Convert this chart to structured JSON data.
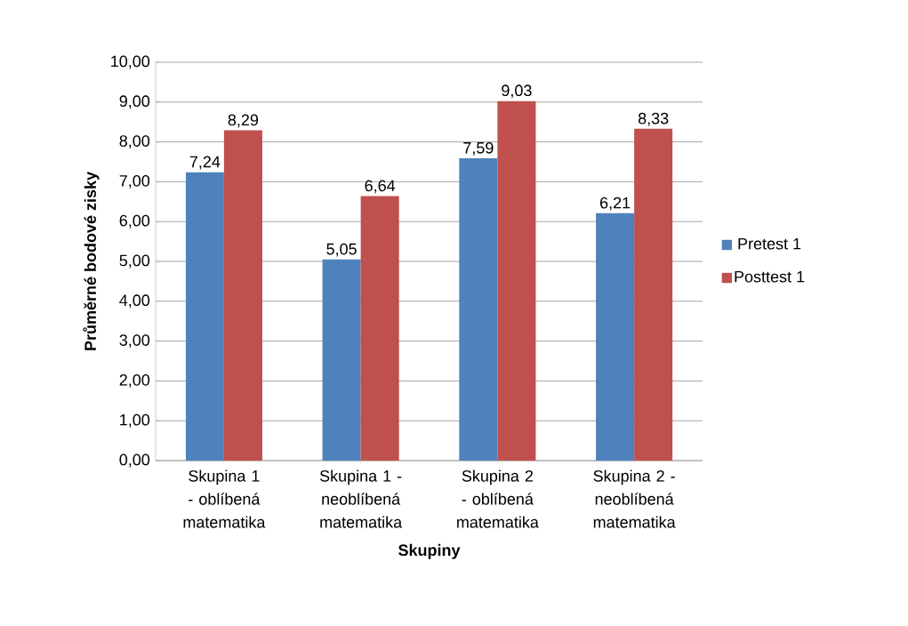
{
  "chart_data": {
    "type": "bar",
    "xlabel": "Skupiny",
    "ylabel": "Průměrné bodové zisky",
    "categories": [
      "Skupina 1 - oblíbená matematika",
      "Skupina 1 - neoblíbená matematika",
      "Skupina 2 - oblíbená matematika",
      "Skupina 2 - neoblíbená matematika"
    ],
    "series": [
      {
        "name": "Pretest 1",
        "color": "#4f81bd",
        "values": [
          7.24,
          5.05,
          7.59,
          6.21
        ],
        "value_labels": [
          "7,24",
          "5,05",
          "7,59",
          "6,21"
        ]
      },
      {
        "name": "Posttest 1",
        "color": "#c0504d",
        "values": [
          8.29,
          6.64,
          9.03,
          8.33
        ],
        "value_labels": [
          "8,29",
          "6,64",
          "9,03",
          "8,33"
        ]
      }
    ],
    "ylim": [
      0,
      10
    ],
    "yticks": [
      {
        "value": 0,
        "label": "0,00"
      },
      {
        "value": 1,
        "label": "1,00"
      },
      {
        "value": 2,
        "label": "2,00"
      },
      {
        "value": 3,
        "label": "3,00"
      },
      {
        "value": 4,
        "label": "4,00"
      },
      {
        "value": 5,
        "label": "5,00"
      },
      {
        "value": 6,
        "label": "6,00"
      },
      {
        "value": 7,
        "label": "7,00"
      },
      {
        "value": 8,
        "label": "8,00"
      },
      {
        "value": 9,
        "label": "9,00"
      },
      {
        "value": 10,
        "label": "10,00"
      }
    ],
    "grid": "y",
    "legend": "right"
  }
}
